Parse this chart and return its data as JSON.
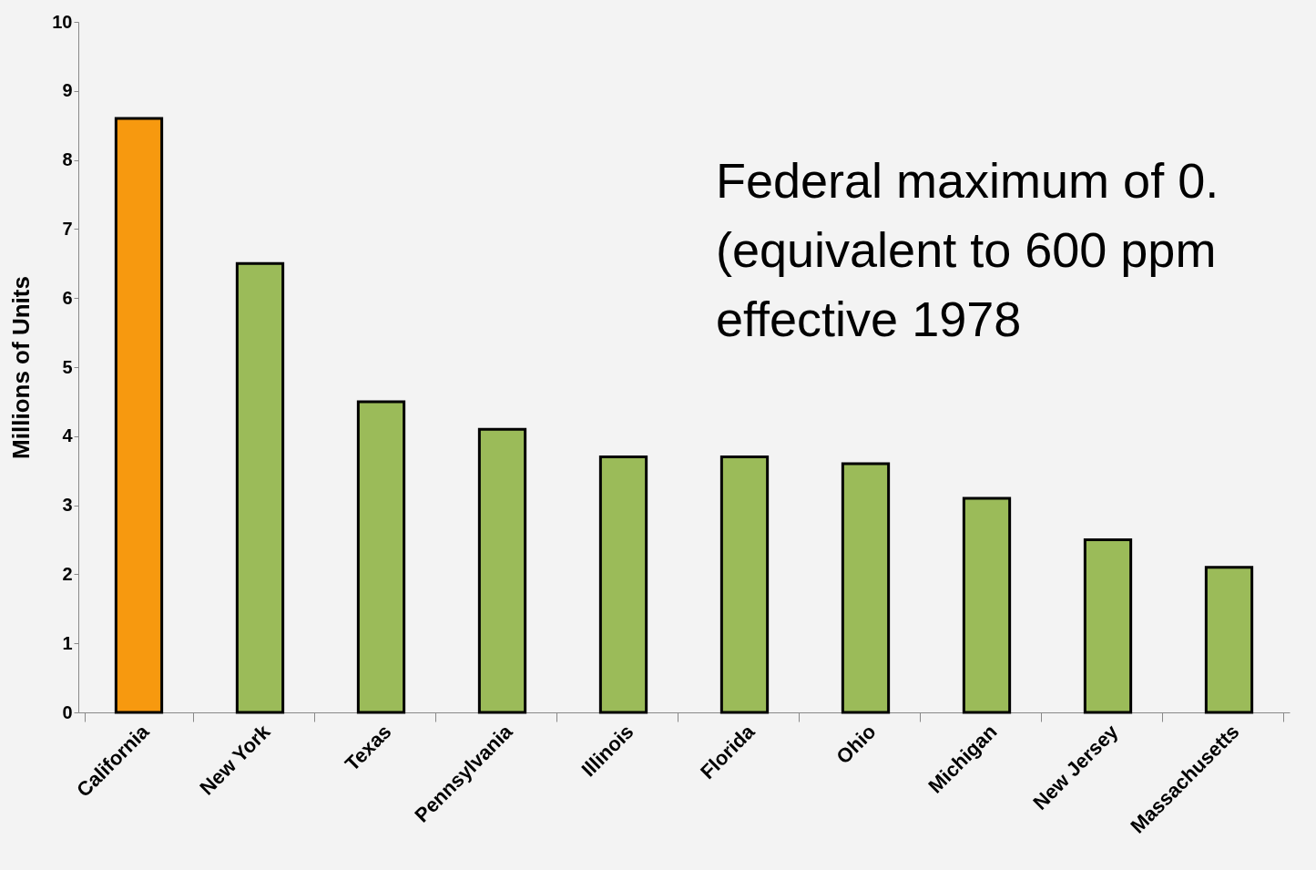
{
  "chart_data": {
    "type": "bar",
    "ylabel": "Millions of Units",
    "categories": [
      "California",
      "New York",
      "Texas",
      "Pennsylvania",
      "Illinois",
      "Florida",
      "Ohio",
      "Michigan",
      "New Jersey",
      "Massachusetts"
    ],
    "values": [
      8.6,
      6.5,
      4.5,
      4.1,
      3.7,
      3.7,
      3.6,
      3.1,
      2.5,
      2.1
    ],
    "colors": [
      "#f7990f",
      "#9bbb59",
      "#9bbb59",
      "#9bbb59",
      "#9bbb59",
      "#9bbb59",
      "#9bbb59",
      "#9bbb59",
      "#9bbb59",
      "#9bbb59"
    ],
    "ylim": [
      0,
      10
    ],
    "yticks": [
      0,
      1,
      2,
      3,
      4,
      5,
      6,
      7,
      8,
      9,
      10
    ],
    "grid": false,
    "annotations": [
      "Federal maximum of 0.",
      "(equivalent to 600 ppm",
      "effective 1978"
    ]
  }
}
